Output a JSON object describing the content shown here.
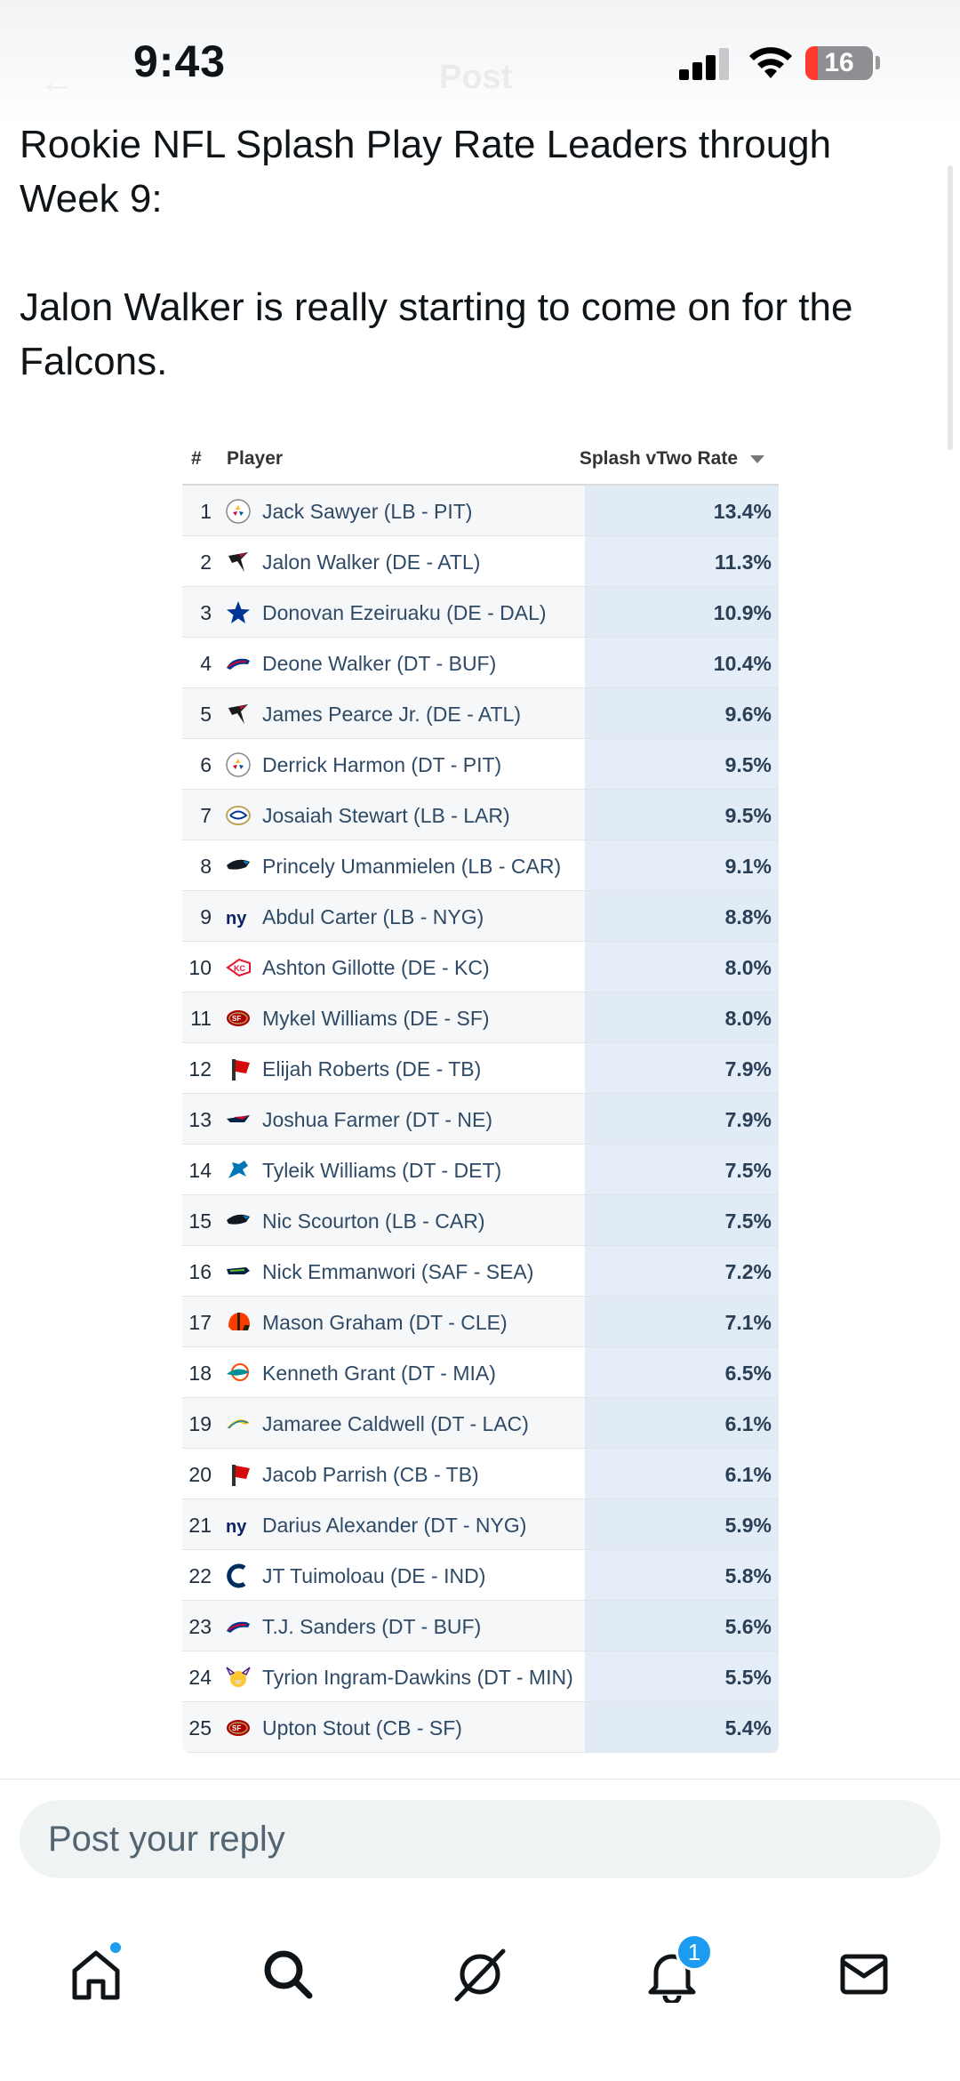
{
  "status_bar": {
    "time": "9:43",
    "battery_level": "16",
    "signal_bars": 3
  },
  "header": {
    "title": "Post"
  },
  "tweet": {
    "text": "Rookie NFL Splash Play Rate Leaders through Week 9:\n\nJalon Walker is really starting to come on for the Falcons."
  },
  "table": {
    "columns": {
      "rank": "#",
      "player": "Player",
      "rate": "Splash vTwo Rate"
    },
    "sort": "descending",
    "rows": [
      {
        "rank": "1",
        "player": "Jack Sawyer (LB - PIT)",
        "team_logo": "steelers-logo",
        "rate": "13.4%"
      },
      {
        "rank": "2",
        "player": "Jalon Walker (DE - ATL)",
        "team_logo": "falcons-logo",
        "rate": "11.3%"
      },
      {
        "rank": "3",
        "player": "Donovan Ezeiruaku (DE - DAL)",
        "team_logo": "cowboys-logo",
        "rate": "10.9%"
      },
      {
        "rank": "4",
        "player": "Deone Walker (DT - BUF)",
        "team_logo": "bills-logo",
        "rate": "10.4%"
      },
      {
        "rank": "5",
        "player": "James Pearce Jr. (DE - ATL)",
        "team_logo": "falcons-logo",
        "rate": "9.6%"
      },
      {
        "rank": "6",
        "player": "Derrick Harmon (DT - PIT)",
        "team_logo": "steelers-logo",
        "rate": "9.5%"
      },
      {
        "rank": "7",
        "player": "Josaiah Stewart (LB - LAR)",
        "team_logo": "rams-logo",
        "rate": "9.5%"
      },
      {
        "rank": "8",
        "player": "Princely Umanmielen (LB - CAR)",
        "team_logo": "panthers-logo",
        "rate": "9.1%"
      },
      {
        "rank": "9",
        "player": "Abdul Carter (LB - NYG)",
        "team_logo": "giants-logo",
        "rate": "8.8%"
      },
      {
        "rank": "10",
        "player": "Ashton Gillotte (DE - KC)",
        "team_logo": "chiefs-logo",
        "rate": "8.0%"
      },
      {
        "rank": "11",
        "player": "Mykel Williams (DE - SF)",
        "team_logo": "49ers-logo",
        "rate": "8.0%"
      },
      {
        "rank": "12",
        "player": "Elijah Roberts (DE - TB)",
        "team_logo": "buccaneers-logo",
        "rate": "7.9%"
      },
      {
        "rank": "13",
        "player": "Joshua Farmer (DT - NE)",
        "team_logo": "patriots-logo",
        "rate": "7.9%"
      },
      {
        "rank": "14",
        "player": "Tyleik Williams (DT - DET)",
        "team_logo": "lions-logo",
        "rate": "7.5%"
      },
      {
        "rank": "15",
        "player": "Nic Scourton (LB - CAR)",
        "team_logo": "panthers-logo",
        "rate": "7.5%"
      },
      {
        "rank": "16",
        "player": "Nick Emmanwori (SAF - SEA)",
        "team_logo": "seahawks-logo",
        "rate": "7.2%"
      },
      {
        "rank": "17",
        "player": "Mason Graham (DT - CLE)",
        "team_logo": "browns-logo",
        "rate": "7.1%"
      },
      {
        "rank": "18",
        "player": "Kenneth Grant (DT - MIA)",
        "team_logo": "dolphins-logo",
        "rate": "6.5%"
      },
      {
        "rank": "19",
        "player": "Jamaree Caldwell (DT - LAC)",
        "team_logo": "chargers-logo",
        "rate": "6.1%"
      },
      {
        "rank": "20",
        "player": "Jacob Parrish (CB - TB)",
        "team_logo": "buccaneers-logo",
        "rate": "6.1%"
      },
      {
        "rank": "21",
        "player": "Darius Alexander (DT - NYG)",
        "team_logo": "giants-logo",
        "rate": "5.9%"
      },
      {
        "rank": "22",
        "player": "JT Tuimoloau (DE - IND)",
        "team_logo": "colts-logo",
        "rate": "5.8%"
      },
      {
        "rank": "23",
        "player": "T.J. Sanders (DT - BUF)",
        "team_logo": "bills-logo",
        "rate": "5.6%"
      },
      {
        "rank": "24",
        "player": "Tyrion Ingram-Dawkins (DT - MIN)",
        "team_logo": "vikings-logo",
        "rate": "5.5%"
      },
      {
        "rank": "25",
        "player": "Upton Stout (CB - SF)",
        "team_logo": "49ers-logo",
        "rate": "5.4%"
      }
    ]
  },
  "reply": {
    "placeholder": "Post your reply"
  },
  "bottom_nav": {
    "items": [
      {
        "name": "home",
        "icon": "home-icon"
      },
      {
        "name": "search",
        "icon": "search-icon"
      },
      {
        "name": "grok",
        "icon": "grok-icon"
      },
      {
        "name": "notifications",
        "icon": "bell-icon",
        "badge": "1"
      },
      {
        "name": "messages",
        "icon": "mail-icon"
      }
    ]
  },
  "colors": {
    "accent": "#1d9bf0",
    "rate_column_bg": "#e5eef8",
    "player_link": "#2f4a66",
    "battery_low": "#ff3b30"
  }
}
